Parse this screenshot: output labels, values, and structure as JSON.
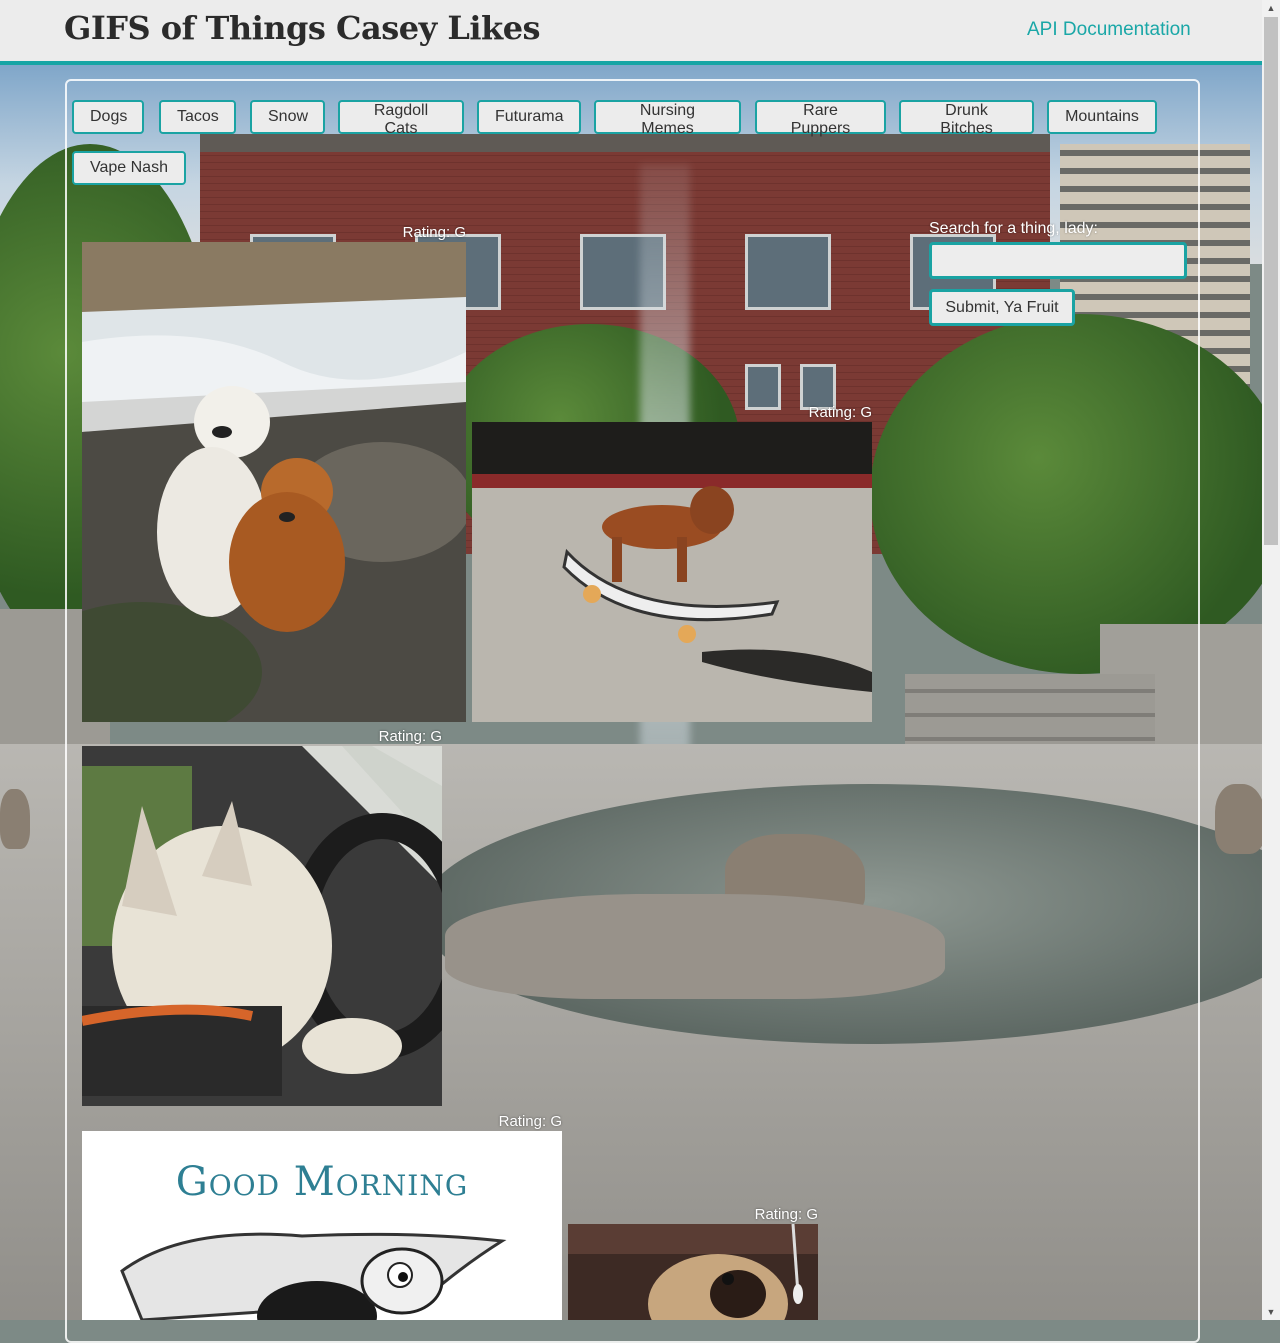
{
  "header": {
    "title": "GIFS of Things Casey Likes",
    "api_link": "API Documentation"
  },
  "topics": [
    "Dogs",
    "Tacos",
    "Snow",
    "Ragdoll Cats",
    "Futurama",
    "Nursing Memes",
    "Rare Puppers",
    "Drunk Bitches",
    "Mountains",
    "Vape Nash"
  ],
  "search": {
    "label": "Search for a thing, lady:",
    "value": "",
    "submit_label": "Submit, Ya Fruit"
  },
  "gifs": [
    {
      "rating": "Rating: G",
      "subject": "golden retriever hugging dog by waterfall"
    },
    {
      "rating": "Rating: G",
      "subject": "dachshund on skateboard"
    },
    {
      "rating": "Rating: G",
      "subject": "french bulldog driving jeep"
    },
    {
      "rating": "Rating: G",
      "subject": "good morning cartoon",
      "caption": "Good Morning"
    },
    {
      "rating": "Rating: G",
      "subject": "pug on couch"
    }
  ],
  "colors": {
    "accent": "#1aa3a3",
    "link": "#1aa7a7",
    "header_bg": "#ececec"
  }
}
